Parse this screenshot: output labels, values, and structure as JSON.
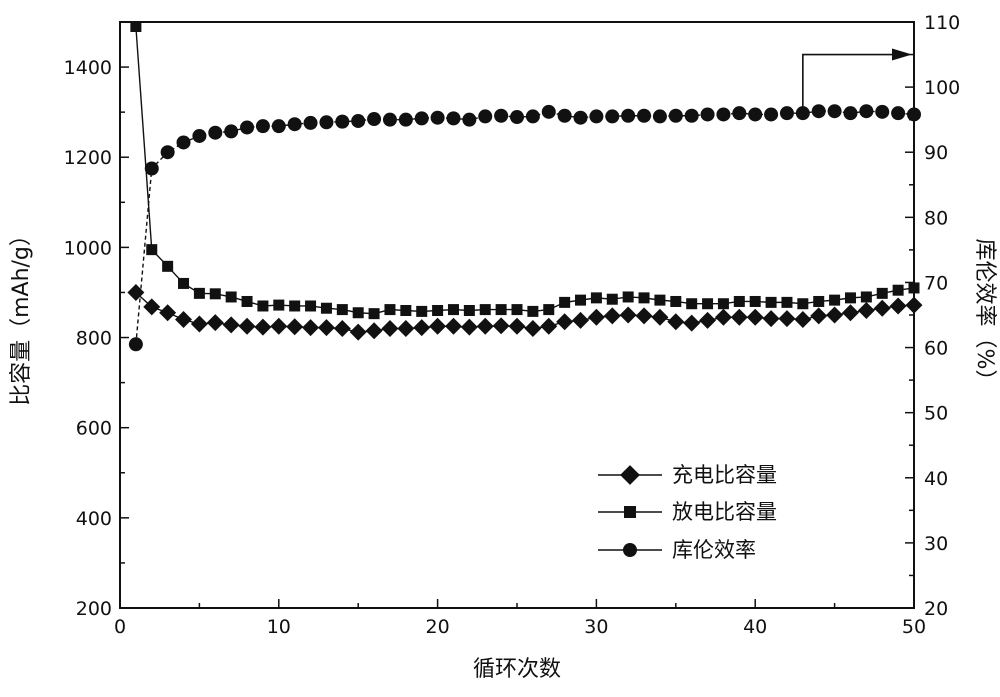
{
  "chart_data": {
    "type": "scatter",
    "xlabel": "循环次数",
    "ylabel_left": "比容量（mAh/g）",
    "ylabel_right": "库伦效率（%）",
    "xlim": [
      0,
      50
    ],
    "ylim_left": [
      200,
      1500
    ],
    "ylim_right": [
      20,
      110
    ],
    "x_ticks": [
      0,
      10,
      20,
      30,
      40,
      50
    ],
    "y_left_ticks": [
      200,
      400,
      600,
      800,
      1000,
      1200,
      1400
    ],
    "y_right_ticks": [
      20,
      30,
      40,
      50,
      60,
      70,
      80,
      90,
      100,
      110
    ],
    "grid": false,
    "legend_position": "bottom-right",
    "x": [
      1,
      2,
      3,
      4,
      5,
      6,
      7,
      8,
      9,
      10,
      11,
      12,
      13,
      14,
      15,
      16,
      17,
      18,
      19,
      20,
      21,
      22,
      23,
      24,
      25,
      26,
      27,
      28,
      29,
      30,
      31,
      32,
      33,
      34,
      35,
      36,
      37,
      38,
      39,
      40,
      41,
      42,
      43,
      44,
      45,
      46,
      47,
      48,
      49,
      50
    ],
    "series": [
      {
        "name": "充电比容量",
        "axis": "left",
        "marker": "diamond",
        "values": [
          900,
          868,
          855,
          840,
          830,
          833,
          828,
          825,
          823,
          825,
          824,
          822,
          822,
          820,
          812,
          815,
          820,
          820,
          822,
          825,
          825,
          823,
          825,
          826,
          825,
          820,
          825,
          835,
          838,
          845,
          848,
          850,
          848,
          845,
          835,
          832,
          838,
          845,
          845,
          845,
          842,
          842,
          840,
          848,
          850,
          855,
          860,
          865,
          870,
          872
        ]
      },
      {
        "name": "放电比容量",
        "axis": "left",
        "marker": "square",
        "values": [
          1490,
          995,
          958,
          920,
          898,
          897,
          890,
          880,
          870,
          872,
          870,
          870,
          865,
          862,
          855,
          853,
          862,
          860,
          858,
          860,
          862,
          860,
          862,
          862,
          862,
          858,
          862,
          878,
          883,
          888,
          885,
          890,
          888,
          883,
          880,
          875,
          875,
          875,
          880,
          880,
          878,
          878,
          875,
          880,
          883,
          888,
          890,
          898,
          905,
          910
        ]
      },
      {
        "name": "库伦效率",
        "axis": "right",
        "marker": "circle",
        "values": [
          60.5,
          87.5,
          90,
          91.5,
          92.5,
          93,
          93.2,
          93.8,
          94,
          94,
          94.3,
          94.5,
          94.6,
          94.7,
          94.8,
          95.1,
          95,
          95,
          95.2,
          95.3,
          95.2,
          95,
          95.5,
          95.6,
          95.4,
          95.5,
          96.2,
          95.6,
          95.3,
          95.5,
          95.5,
          95.6,
          95.6,
          95.5,
          95.6,
          95.6,
          95.8,
          95.8,
          96,
          95.8,
          95.8,
          96,
          96,
          96.3,
          96.3,
          96,
          96.3,
          96.2,
          96,
          95.8
        ]
      }
    ],
    "annotation": {
      "type": "arrow",
      "from_point": [
        43,
        96
      ],
      "to_point": [
        50,
        105
      ],
      "meaning": "indicates right axis"
    }
  }
}
